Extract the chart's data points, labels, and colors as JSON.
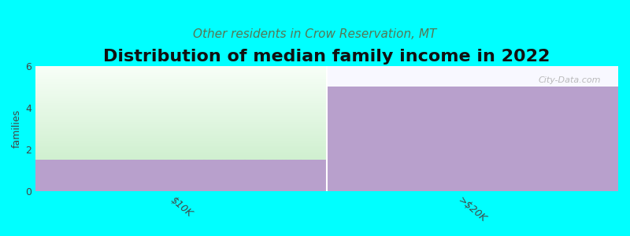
{
  "title": "Distribution of median family income in 2022",
  "subtitle": "Other residents in Crow Reservation, MT",
  "categories": [
    "$10K",
    ">$20K"
  ],
  "bar1_value": 1.5,
  "bar2_value": 5.0,
  "ylim_max": 6,
  "yticks": [
    0,
    2,
    4,
    6
  ],
  "ylabel": "families",
  "purple_color": "#b8a0cc",
  "green_top_color": "#f0fff0",
  "green_bottom_color": "#d0f0d0",
  "plot_bg_color": "#f8f8ff",
  "fig_bg_color": "#00ffff",
  "title_color": "#111111",
  "subtitle_color": "#557755",
  "tick_color": "#444444",
  "watermark_text": "City-Data.com",
  "watermark_color": "#aaaaaa",
  "title_fontsize": 16,
  "subtitle_fontsize": 11,
  "ylabel_fontsize": 9,
  "tick_fontsize": 9
}
